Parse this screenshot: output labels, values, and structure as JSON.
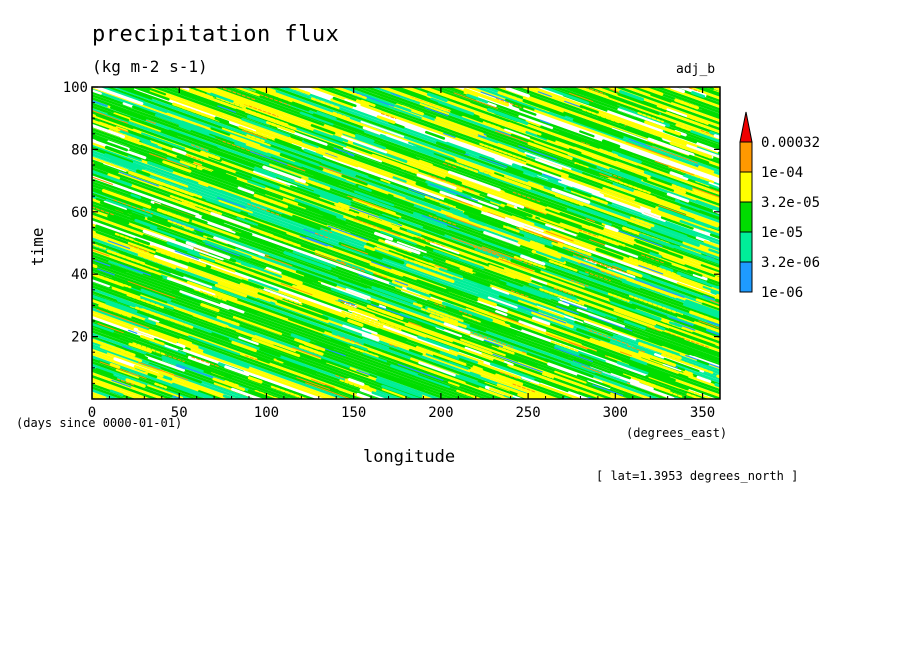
{
  "chart_data": {
    "type": "heatmap",
    "title": "precipitation flux",
    "units": "(kg m-2 s-1)",
    "run_label": "adj_b",
    "xlabel": "longitude",
    "x_units": "(degrees_east)",
    "ylabel": "time",
    "y_units": "(days since 0000-01-01)",
    "xlim": [
      0,
      360
    ],
    "ylim": [
      0,
      100
    ],
    "x_ticks": [
      0,
      50,
      100,
      150,
      200,
      250,
      300,
      350
    ],
    "y_ticks": [
      20,
      40,
      60,
      80,
      100
    ],
    "annotation": "[ lat=1.3953 degrees_north ]",
    "colorbar": {
      "levels": [
        "1e-06",
        "3.2e-06",
        "1e-05",
        "3.2e-05",
        "1e-04",
        "0.00032"
      ],
      "colors": [
        "#1e9bff",
        "#00ee99",
        "#00dd00",
        "#ffff00",
        "#ff9900",
        "#ee0000"
      ],
      "extend": "max"
    },
    "pattern": "westward-propagating precipitation streaks, slope about 0.2 days per degree longitude"
  }
}
